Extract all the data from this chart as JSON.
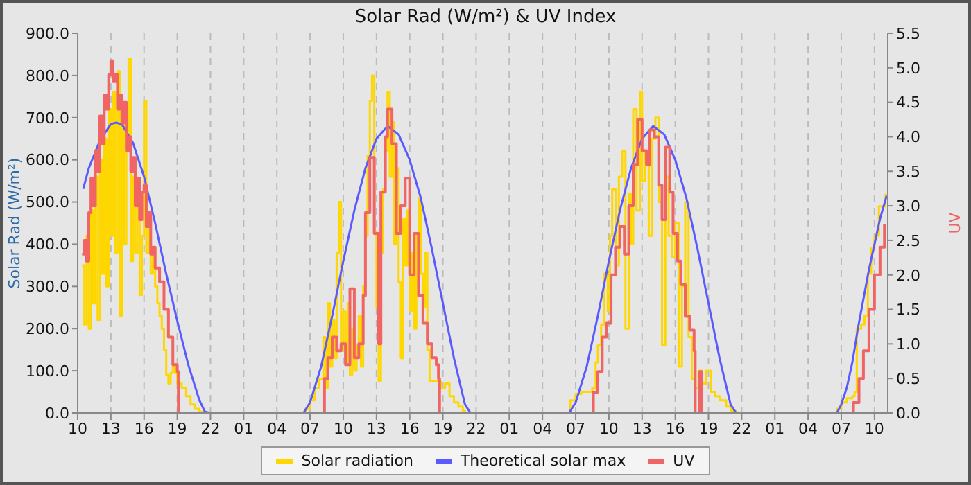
{
  "chart_data": {
    "type": "line",
    "title": "Solar Rad (W/m²) &  UV Index",
    "ylabel": "Solar Rad (W/m²)",
    "y2label": "UV",
    "xlim": [
      "--01-01T10:00",
      "--01-04T11:12"
    ],
    "xticks": [
      {
        "value": "--01-01T10:00",
        "label": "10"
      },
      {
        "value": "--01-01T13:00",
        "label": "13"
      },
      {
        "value": "--01-01T16:00",
        "label": "16"
      },
      {
        "value": "--01-01T19:00",
        "label": "19"
      },
      {
        "value": "--01-01T22:00",
        "label": "22"
      },
      {
        "value": "--01-02T01:00",
        "label": "01"
      },
      {
        "value": "--01-02T04:00",
        "label": "04"
      },
      {
        "value": "--01-02T07:00",
        "label": "07"
      },
      {
        "value": "--01-02T10:00",
        "label": "10"
      },
      {
        "value": "--01-02T13:00",
        "label": "13"
      },
      {
        "value": "--01-02T16:00",
        "label": "16"
      },
      {
        "value": "--01-02T19:00",
        "label": "19"
      },
      {
        "value": "--01-02T22:00",
        "label": "22"
      },
      {
        "value": "--01-03T01:00",
        "label": "01"
      },
      {
        "value": "--01-03T04:00",
        "label": "04"
      },
      {
        "value": "--01-03T07:00",
        "label": "07"
      },
      {
        "value": "--01-03T10:00",
        "label": "10"
      },
      {
        "value": "--01-03T13:00",
        "label": "13"
      },
      {
        "value": "--01-03T16:00",
        "label": "16"
      },
      {
        "value": "--01-03T19:00",
        "label": "19"
      },
      {
        "value": "--01-03T22:00",
        "label": "22"
      },
      {
        "value": "--01-04T01:00",
        "label": "01"
      },
      {
        "value": "--01-04T04:00",
        "label": "04"
      },
      {
        "value": "--01-04T07:00",
        "label": "07"
      },
      {
        "value": "--01-04T10:00",
        "label": "10"
      }
    ],
    "ylim": [
      0,
      900
    ],
    "yticks": [
      {
        "value": 0,
        "label": "0.0"
      },
      {
        "value": 100,
        "label": "100.0"
      },
      {
        "value": 200,
        "label": "200.0"
      },
      {
        "value": 300,
        "label": "300.0"
      },
      {
        "value": 400,
        "label": "400.0"
      },
      {
        "value": 500,
        "label": "500.0"
      },
      {
        "value": 600,
        "label": "600.0"
      },
      {
        "value": 700,
        "label": "700.0"
      },
      {
        "value": 800,
        "label": "800.0"
      },
      {
        "value": 900,
        "label": "900.0"
      }
    ],
    "y2lim": [
      0,
      5.5
    ],
    "y2ticks": [
      {
        "value": 0,
        "label": "0.0"
      },
      {
        "value": 0.5,
        "label": "0.5"
      },
      {
        "value": 1,
        "label": "1.0"
      },
      {
        "value": 1.5,
        "label": "1.5"
      },
      {
        "value": 2,
        "label": "2.0"
      },
      {
        "value": 2.5,
        "label": "2.5"
      },
      {
        "value": 3,
        "label": "3.0"
      },
      {
        "value": 3.5,
        "label": "3.5"
      },
      {
        "value": 4,
        "label": "4.0"
      },
      {
        "value": 4.5,
        "label": "4.5"
      },
      {
        "value": 5,
        "label": "5.0"
      },
      {
        "value": 5.5,
        "label": "5.5"
      }
    ],
    "grid": true,
    "legend": "bottom",
    "marker": "none",
    "line_style": "solid",
    "series": [
      {
        "name": "Solar radiation",
        "color": "#ffd700",
        "type": "step",
        "x": [
          "--01-01T10:24",
          "--01-01T10:36",
          "--01-01T10:48",
          "--01-01T11:00",
          "--01-01T11:12",
          "--01-01T11:24",
          "--01-01T11:36",
          "--01-01T11:48",
          "--01-01T12:00",
          "--01-01T12:12",
          "--01-01T12:24",
          "--01-01T12:36",
          "--01-01T12:48",
          "--01-01T13:00",
          "--01-01T13:12",
          "--01-01T13:24",
          "--01-01T13:36",
          "--01-01T13:48",
          "--01-01T14:00",
          "--01-01T14:12",
          "--01-01T14:24",
          "--01-01T14:36",
          "--01-01T14:48",
          "--01-01T15:00",
          "--01-01T15:12",
          "--01-01T15:24",
          "--01-01T15:36",
          "--01-01T15:48",
          "--01-01T16:00",
          "--01-01T16:12",
          "--01-01T16:24",
          "--01-01T16:36",
          "--01-01T16:48",
          "--01-01T17:00",
          "--01-01T17:12",
          "--01-01T17:24",
          "--01-01T17:36",
          "--01-01T17:48",
          "--01-01T18:00",
          "--01-01T18:12",
          "--01-01T18:24",
          "--01-01T18:36",
          "--01-01T18:48",
          "--01-01T19:00",
          "--01-01T19:24",
          "--01-01T19:48",
          "--01-01T20:12",
          "--01-01T20:36",
          "--01-01T21:00",
          "--01-01T21:24",
          "--01-02T06:12",
          "--01-02T06:36",
          "--01-02T07:00",
          "--01-02T07:24",
          "--01-02T07:48",
          "--01-02T08:12",
          "--01-02T08:24",
          "--01-02T08:36",
          "--01-02T08:48",
          "--01-02T09:00",
          "--01-02T09:12",
          "--01-02T09:24",
          "--01-02T09:36",
          "--01-02T09:48",
          "--01-02T10:00",
          "--01-02T10:12",
          "--01-02T10:24",
          "--01-02T10:36",
          "--01-02T10:48",
          "--01-02T11:00",
          "--01-02T11:12",
          "--01-02T11:24",
          "--01-02T11:36",
          "--01-02T11:48",
          "--01-02T12:00",
          "--01-02T12:12",
          "--01-02T12:24",
          "--01-02T12:36",
          "--01-02T12:48",
          "--01-02T13:00",
          "--01-02T13:12",
          "--01-02T13:24",
          "--01-02T13:36",
          "--01-02T13:48",
          "--01-02T14:00",
          "--01-02T14:12",
          "--01-02T14:24",
          "--01-02T14:36",
          "--01-02T14:48",
          "--01-02T15:00",
          "--01-02T15:12",
          "--01-02T15:24",
          "--01-02T15:36",
          "--01-02T15:48",
          "--01-02T16:00",
          "--01-02T16:12",
          "--01-02T16:24",
          "--01-02T16:36",
          "--01-02T16:48",
          "--01-02T17:00",
          "--01-02T17:12",
          "--01-02T17:24",
          "--01-02T17:36",
          "--01-02T17:48",
          "--01-02T18:12",
          "--01-02T18:36",
          "--01-02T18:48",
          "--01-02T19:12",
          "--01-02T19:36",
          "--01-02T20:00",
          "--01-02T20:24",
          "--01-02T20:48",
          "--01-02T21:00",
          "--01-03T06:06",
          "--01-03T06:30",
          "--01-03T07:00",
          "--01-03T07:30",
          "--01-03T08:00",
          "--01-03T08:30",
          "--01-03T08:48",
          "--01-03T09:00",
          "--01-03T09:18",
          "--01-03T09:36",
          "--01-03T09:54",
          "--01-03T10:06",
          "--01-03T10:18",
          "--01-03T10:36",
          "--01-03T10:54",
          "--01-03T11:12",
          "--01-03T11:30",
          "--01-03T11:48",
          "--01-03T12:00",
          "--01-03T12:12",
          "--01-03T12:30",
          "--01-03T12:48",
          "--01-03T13:00",
          "--01-03T13:18",
          "--01-03T13:36",
          "--01-03T13:54",
          "--01-03T14:12",
          "--01-03T14:30",
          "--01-03T14:48",
          "--01-03T15:06",
          "--01-03T15:24",
          "--01-03T15:42",
          "--01-03T16:00",
          "--01-03T16:18",
          "--01-03T16:36",
          "--01-03T16:54",
          "--01-03T17:12",
          "--01-03T17:30",
          "--01-03T17:48",
          "--01-03T18:06",
          "--01-03T18:24",
          "--01-03T18:48",
          "--01-03T19:12",
          "--01-03T19:36",
          "--01-03T20:00",
          "--01-03T20:36",
          "--01-03T21:00",
          "--01-03T21:30",
          "--01-04T06:06",
          "--01-04T06:36",
          "--01-04T07:00",
          "--01-04T07:30",
          "--01-04T08:00",
          "--01-04T08:12",
          "--01-04T08:24",
          "--01-04T08:48",
          "--01-04T09:06",
          "--01-04T09:24",
          "--01-04T09:42",
          "--01-04T10:00",
          "--01-04T10:24",
          "--01-04T11:00"
        ],
        "values": [
          350,
          210,
          420,
          200,
          480,
          260,
          560,
          220,
          600,
          330,
          650,
          300,
          720,
          420,
          760,
          380,
          810,
          230,
          700,
          400,
          620,
          840,
          360,
          560,
          380,
          500,
          280,
          420,
          740,
          380,
          460,
          330,
          380,
          300,
          260,
          230,
          200,
          150,
          90,
          70,
          95,
          110,
          95,
          70,
          60,
          40,
          20,
          10,
          3,
          0,
          0,
          10,
          30,
          60,
          80,
          180,
          60,
          260,
          110,
          220,
          130,
          380,
          500,
          150,
          240,
          120,
          260,
          90,
          200,
          100,
          160,
          230,
          110,
          300,
          420,
          610,
          740,
          800,
          430,
          250,
          75,
          380,
          530,
          620,
          760,
          560,
          690,
          400,
          580,
          310,
          130,
          460,
          350,
          480,
          240,
          380,
          200,
          420,
          510,
          330,
          250,
          380,
          150,
          75,
          75,
          75,
          60,
          70,
          40,
          25,
          15,
          5,
          0,
          0,
          30,
          45,
          50,
          50,
          60,
          120,
          160,
          210,
          330,
          240,
          420,
          530,
          350,
          560,
          620,
          200,
          520,
          400,
          720,
          480,
          760,
          550,
          620,
          420,
          650,
          700,
          500,
          160,
          560,
          420,
          370,
          450,
          110,
          300,
          500,
          180,
          80,
          60,
          100,
          70,
          100,
          50,
          40,
          30,
          15,
          5,
          0,
          0,
          10,
          25,
          35,
          40,
          50,
          200,
          210,
          230,
          330,
          390,
          420,
          490,
          520
        ]
      },
      {
        "name": "Theoretical solar max",
        "color": "#5a5aff",
        "type": "line",
        "x": [
          "--01-01T10:30",
          "--01-01T11:00",
          "--01-01T12:00",
          "--01-01T13:00",
          "--01-01T13:30",
          "--01-01T14:00",
          "--01-01T15:00",
          "--01-01T16:00",
          "--01-01T17:00",
          "--01-01T18:00",
          "--01-01T19:00",
          "--01-01T20:00",
          "--01-01T21:00",
          "--01-01T21:30",
          "--01-01T22:00",
          "--01-02T06:24",
          "--01-02T07:00",
          "--01-02T08:00",
          "--01-02T09:00",
          "--01-02T10:00",
          "--01-02T11:00",
          "--01-02T12:00",
          "--01-02T13:00",
          "--01-02T14:00",
          "--01-02T15:00",
          "--01-02T16:00",
          "--01-02T17:00",
          "--01-02T18:00",
          "--01-02T19:00",
          "--01-02T20:00",
          "--01-02T21:00",
          "--01-02T21:30",
          "--01-03T06:24",
          "--01-03T07:00",
          "--01-03T08:00",
          "--01-03T09:00",
          "--01-03T10:00",
          "--01-03T11:00",
          "--01-03T12:00",
          "--01-03T13:00",
          "--01-03T14:00",
          "--01-03T15:00",
          "--01-03T16:00",
          "--01-03T17:00",
          "--01-03T18:00",
          "--01-03T19:00",
          "--01-03T20:00",
          "--01-03T21:00",
          "--01-03T21:30",
          "--01-04T06:36",
          "--01-04T07:00",
          "--01-04T07:30",
          "--01-04T08:00",
          "--01-04T08:30",
          "--01-04T09:00",
          "--01-04T09:30",
          "--01-04T10:00",
          "--01-04T10:30",
          "--01-04T11:06"
        ],
        "values": [
          531,
          580,
          645,
          685,
          688,
          684,
          640,
          560,
          450,
          330,
          218,
          114,
          30,
          3,
          0,
          0,
          25,
          110,
          230,
          360,
          480,
          580,
          650,
          680,
          660,
          600,
          510,
          390,
          260,
          130,
          20,
          0,
          0,
          25,
          110,
          230,
          360,
          480,
          580,
          650,
          680,
          660,
          600,
          510,
          390,
          260,
          130,
          20,
          0,
          0,
          20,
          60,
          120,
          200,
          270,
          340,
          400,
          460,
          515
        ]
      },
      {
        "name": "UV",
        "color": "#f06464",
        "type": "step",
        "axis": "y2",
        "x": [
          "--01-01T10:24",
          "--01-01T10:36",
          "--01-01T10:48",
          "--01-01T11:00",
          "--01-01T11:12",
          "--01-01T11:24",
          "--01-01T11:36",
          "--01-01T11:48",
          "--01-01T12:00",
          "--01-01T12:12",
          "--01-01T12:24",
          "--01-01T12:36",
          "--01-01T12:48",
          "--01-01T13:00",
          "--01-01T13:12",
          "--01-01T13:24",
          "--01-01T13:36",
          "--01-01T13:48",
          "--01-01T14:00",
          "--01-01T14:12",
          "--01-01T14:24",
          "--01-01T14:36",
          "--01-01T14:48",
          "--01-01T15:00",
          "--01-01T15:12",
          "--01-01T15:24",
          "--01-01T15:36",
          "--01-01T15:48",
          "--01-01T16:00",
          "--01-01T16:12",
          "--01-01T16:24",
          "--01-01T16:36",
          "--01-01T16:48",
          "--01-01T17:00",
          "--01-01T17:24",
          "--01-01T17:48",
          "--01-01T18:12",
          "--01-01T18:36",
          "--01-01T19:00",
          "--01-01T19:06",
          "--01-02T08:12",
          "--01-02T08:18",
          "--01-02T08:36",
          "--01-02T09:00",
          "--01-02T09:24",
          "--01-02T09:48",
          "--01-02T10:12",
          "--01-02T10:36",
          "--01-02T11:00",
          "--01-02T11:24",
          "--01-02T11:48",
          "--01-02T12:00",
          "--01-02T12:24",
          "--01-02T12:48",
          "--01-02T13:12",
          "--01-02T13:24",
          "--01-02T13:48",
          "--01-02T14:00",
          "--01-02T14:24",
          "--01-02T14:48",
          "--01-02T15:12",
          "--01-02T15:36",
          "--01-02T16:00",
          "--01-02T16:24",
          "--01-02T16:48",
          "--01-02T17:12",
          "--01-02T17:36",
          "--01-02T18:00",
          "--01-02T18:24",
          "--01-02T18:36",
          "--01-02T18:42",
          "--01-03T08:30",
          "--01-03T08:36",
          "--01-03T09:00",
          "--01-03T09:24",
          "--01-03T09:48",
          "--01-03T10:12",
          "--01-03T10:36",
          "--01-03T11:00",
          "--01-03T11:24",
          "--01-03T11:48",
          "--01-03T12:12",
          "--01-03T12:36",
          "--01-03T13:00",
          "--01-03T13:24",
          "--01-03T13:42",
          "--01-03T14:06",
          "--01-03T14:30",
          "--01-03T14:48",
          "--01-03T15:06",
          "--01-03T15:30",
          "--01-03T15:48",
          "--01-03T16:12",
          "--01-03T16:30",
          "--01-03T16:54",
          "--01-03T17:18",
          "--01-03T17:42",
          "--01-03T17:48",
          "--01-03T18:06",
          "--01-03T18:12",
          "--01-03T18:24",
          "--01-04T08:00",
          "--01-04T08:06",
          "--01-04T08:24",
          "--01-04T08:36",
          "--01-04T09:00",
          "--01-04T09:30",
          "--01-04T10:00",
          "--01-04T10:30",
          "--01-04T10:54"
        ],
        "values": [
          2.3,
          2.5,
          2.2,
          2.9,
          3.4,
          3.0,
          3.8,
          3.5,
          4.3,
          3.9,
          4.6,
          4.4,
          4.9,
          5.1,
          4.8,
          4.9,
          4.4,
          4.6,
          4.2,
          4.5,
          3.8,
          4.0,
          3.5,
          3.7,
          3.0,
          3.4,
          2.8,
          3.2,
          3.3,
          2.7,
          2.9,
          2.3,
          2.4,
          2.1,
          1.9,
          1.5,
          1.1,
          0.7,
          0.6,
          0,
          0,
          0.5,
          0.8,
          1.1,
          0.9,
          1.0,
          0.7,
          1.8,
          0.8,
          1.0,
          1.7,
          2.9,
          3.7,
          2.6,
          1.0,
          3.2,
          4.0,
          4.4,
          3.9,
          2.6,
          3.0,
          3.4,
          2.0,
          2.6,
          1.7,
          1.3,
          1.0,
          0.8,
          0.7,
          0.5,
          0,
          0,
          0.3,
          0.6,
          1.1,
          1.3,
          2.0,
          2.4,
          2.7,
          2.3,
          3.0,
          3.6,
          4.25,
          3.8,
          3.6,
          4.1,
          4.0,
          3.3,
          2.8,
          3.85,
          3.2,
          2.6,
          2.2,
          1.86,
          1.4,
          1.2,
          0.9,
          0,
          0,
          0.6,
          0,
          0,
          0.15,
          0.15,
          0.5,
          0.9,
          1.5,
          2.0,
          2.4,
          2.73
        ]
      }
    ]
  }
}
